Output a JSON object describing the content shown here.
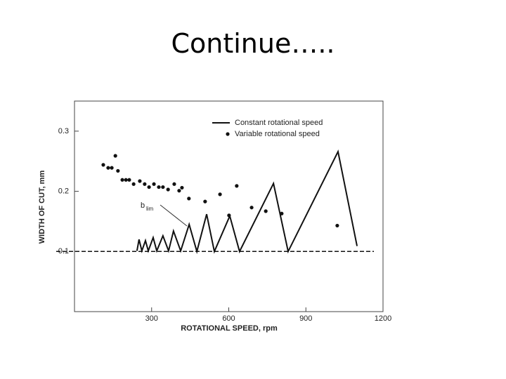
{
  "title": "Continue…..",
  "chart_data": {
    "type": "line",
    "xlabel": "ROTATIONAL SPEED, rpm",
    "ylabel": "WIDTH OF CUT, mm",
    "annotation": "b",
    "annotation_sub": "lim",
    "xlim": [
      0,
      1200
    ],
    "ylim": [
      0,
      0.35
    ],
    "xticks": [
      300,
      600,
      900,
      1200
    ],
    "yticks": [
      0.1,
      0.2,
      0.3
    ],
    "reference_line": 0.1,
    "legend": "upper right",
    "series": [
      {
        "name": "Constant rotational speed",
        "kind": "line",
        "color": "#111111",
        "x": [
          243,
          251,
          262,
          276,
          287,
          306,
          320,
          344,
          366,
          385,
          413,
          446,
          476,
          514,
          544,
          604,
          642,
          774,
          831,
          1025,
          1099
        ],
        "values": [
          0.101,
          0.12,
          0.101,
          0.118,
          0.101,
          0.123,
          0.101,
          0.126,
          0.101,
          0.134,
          0.101,
          0.145,
          0.1,
          0.162,
          0.1,
          0.159,
          0.1,
          0.213,
          0.1,
          0.266,
          0.109
        ]
      },
      {
        "name": "Variable rotational speed",
        "kind": "scatter",
        "color": "#111111",
        "x": [
          112,
          131,
          145,
          159,
          169,
          186,
          200,
          213,
          230,
          254,
          273,
          290,
          309,
          328,
          344,
          364,
          388,
          407,
          418,
          445,
          508,
          566,
          601,
          631,
          689,
          744,
          806,
          1022
        ],
        "values": [
          0.244,
          0.239,
          0.239,
          0.259,
          0.234,
          0.219,
          0.219,
          0.219,
          0.212,
          0.217,
          0.212,
          0.207,
          0.212,
          0.207,
          0.207,
          0.203,
          0.212,
          0.201,
          0.206,
          0.188,
          0.183,
          0.195,
          0.16,
          0.209,
          0.173,
          0.167,
          0.163,
          0.143
        ]
      }
    ]
  }
}
